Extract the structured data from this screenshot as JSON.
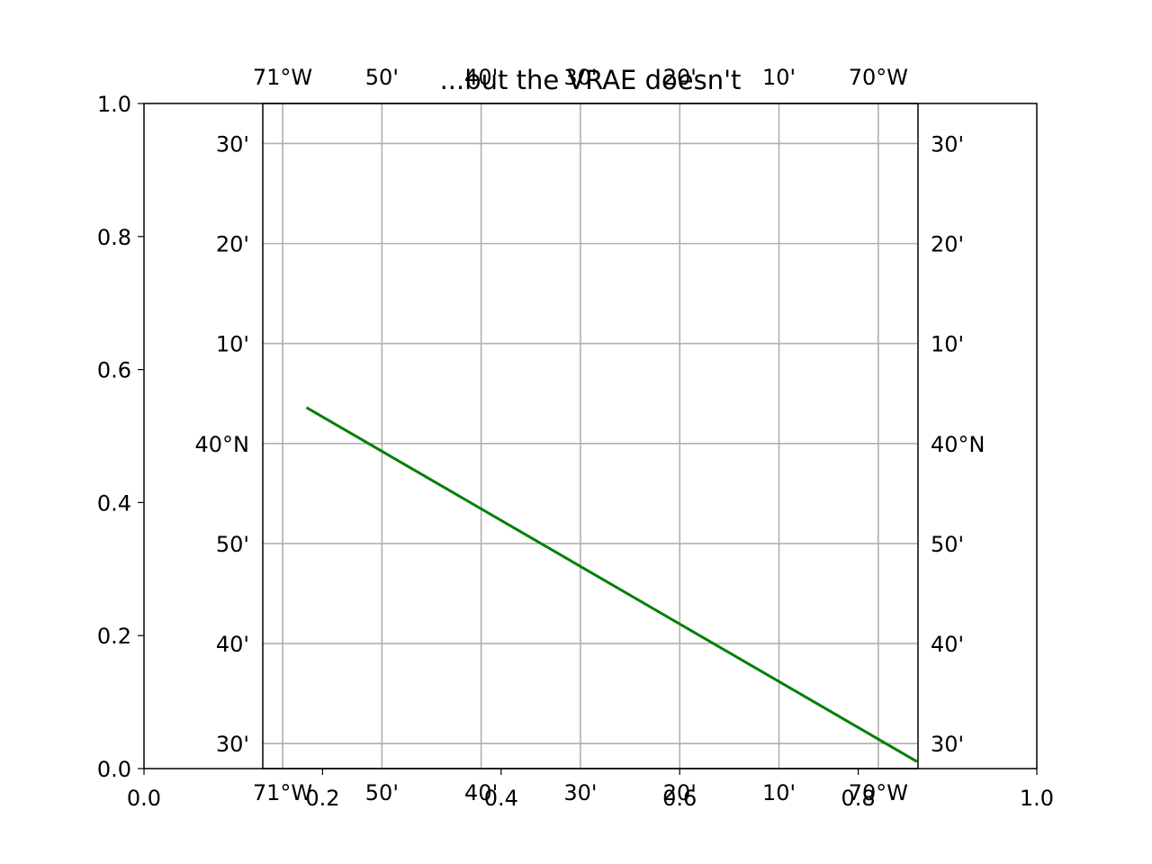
{
  "title": "...but the VRAE doesn't",
  "colors": {
    "line": "#008000",
    "grid": "#b0b0b0",
    "axes": "#000000",
    "background": "#ffffff"
  },
  "outer_axes": {
    "xlim": [
      0.0,
      1.0
    ],
    "ylim": [
      0.0,
      1.0
    ],
    "xticks": [
      0.0,
      0.2,
      0.4,
      0.6,
      0.8,
      1.0
    ],
    "yticks": [
      0.0,
      0.2,
      0.4,
      0.6,
      0.8,
      1.0
    ],
    "xtick_labels": [
      "0.0",
      "0.2",
      "0.4",
      "0.6",
      "0.8",
      "1.0"
    ],
    "ytick_labels": [
      "0.0",
      "0.2",
      "0.4",
      "0.6",
      "0.8",
      "1.0"
    ]
  },
  "map_axes": {
    "lon_range_deg": [
      -71.0333,
      -69.9333
    ],
    "lat_range_deg": [
      39.4583,
      40.5667
    ],
    "gridlines": true,
    "meridians": [
      {
        "lon": -71.0,
        "label": "71°W"
      },
      {
        "lon": -70.8333,
        "label": "50'"
      },
      {
        "lon": -70.6667,
        "label": "40'"
      },
      {
        "lon": -70.5,
        "label": "30'"
      },
      {
        "lon": -70.3333,
        "label": "20'"
      },
      {
        "lon": -70.1667,
        "label": "10'"
      },
      {
        "lon": -70.0,
        "label": "70°W"
      }
    ],
    "parallels": [
      {
        "lat": 39.5,
        "label": "30'"
      },
      {
        "lat": 39.6667,
        "label": "40'"
      },
      {
        "lat": 39.8333,
        "label": "50'"
      },
      {
        "lat": 40.0,
        "label": "40°N"
      },
      {
        "lat": 40.1667,
        "label": "10'"
      },
      {
        "lat": 40.3333,
        "label": "20'"
      },
      {
        "lat": 40.5,
        "label": "30'"
      }
    ]
  },
  "route": {
    "points": [
      {
        "lon": -70.96,
        "lat": 40.06
      },
      {
        "lon": -69.935,
        "lat": 39.47
      }
    ]
  }
}
